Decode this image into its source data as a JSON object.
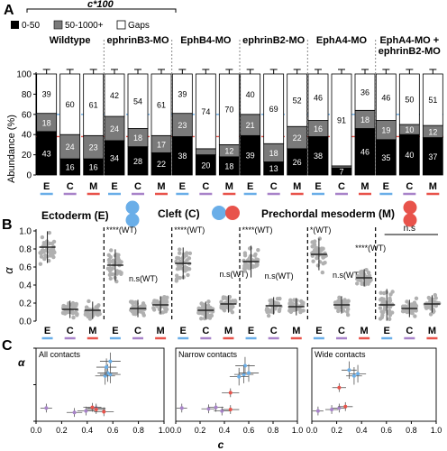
{
  "panels": {
    "a": "A",
    "b": "B",
    "c": "C"
  },
  "axes": {
    "abundance_ylabel": "Abundance (%)",
    "alpha": "α",
    "c": "c"
  },
  "legend": {
    "scale_title": "c*100",
    "bins": [
      "0-50",
      "50-1000+",
      "Gaps"
    ]
  },
  "tissue_legend": {
    "ectoderm": "Ectoderm (E)",
    "cleft": "Cleft (C)",
    "mesoderm": "Prechordal mesoderm (M)"
  },
  "colors": {
    "bin_low": "#000000",
    "bin_mid": "#7a7a7a",
    "gaps": "#ffffff",
    "E": "#6aaee8",
    "C": "#a883c9",
    "M": "#e8534b",
    "line_blue": "#6aaee8",
    "line_red": "#e8534b"
  },
  "chart_data": [
    {
      "type": "bar",
      "stacked": true,
      "title": "",
      "ylabel": "Abundance (%)",
      "ylim": [
        0,
        100
      ],
      "yticks": [
        0,
        20,
        40,
        60,
        80,
        100
      ],
      "legend": [
        "0-50",
        "50-1000+",
        "Gaps"
      ],
      "reference_lines": {
        "blue": 60,
        "red": 38
      },
      "groups": [
        {
          "name": "Wildtype",
          "bars": [
            {
              "cat": "E",
              "values": [
                43,
                18,
                39
              ],
              "labels": [
                "43",
                "18",
                "39"
              ]
            },
            {
              "cat": "C",
              "values": [
                16,
                24,
                60
              ],
              "labels": [
                "16",
                "24",
                "60"
              ]
            },
            {
              "cat": "M",
              "values": [
                16,
                23,
                61
              ],
              "labels": [
                "16",
                "23",
                "61"
              ]
            }
          ]
        },
        {
          "name": "ephrinB3-MO",
          "bars": [
            {
              "cat": "E",
              "values": [
                34,
                24,
                42
              ],
              "labels": [
                "34",
                "24",
                "42"
              ]
            },
            {
              "cat": "C",
              "values": [
                28,
                18,
                54
              ],
              "labels": [
                "28",
                "18",
                "54"
              ]
            },
            {
              "cat": "M",
              "values": [
                22,
                17,
                61
              ],
              "labels": [
                "22",
                "17",
                "61"
              ]
            }
          ]
        },
        {
          "name": "EphB4-MO",
          "bars": [
            {
              "cat": "E",
              "values": [
                38,
                23,
                39
              ],
              "labels": [
                "38",
                "23",
                "39"
              ]
            },
            {
              "cat": "C",
              "values": [
                20,
                6,
                74
              ],
              "labels": [
                "20",
                "",
                "74"
              ]
            },
            {
              "cat": "M",
              "values": [
                18,
                12,
                70
              ],
              "labels": [
                "18",
                "12",
                "70"
              ]
            }
          ]
        },
        {
          "name": "ephrinB2-MO",
          "bars": [
            {
              "cat": "E",
              "values": [
                39,
                21,
                40
              ],
              "labels": [
                "39",
                "21",
                "40"
              ]
            },
            {
              "cat": "C",
              "values": [
                13,
                18,
                69
              ],
              "labels": [
                "13",
                "18",
                "69"
              ]
            },
            {
              "cat": "M",
              "values": [
                26,
                22,
                52
              ],
              "labels": [
                "26",
                "22",
                "52"
              ]
            }
          ]
        },
        {
          "name": "EphA4-MO",
          "bars": [
            {
              "cat": "E",
              "values": [
                38,
                16,
                46
              ],
              "labels": [
                "38",
                "16",
                "46"
              ]
            },
            {
              "cat": "C",
              "values": [
                7,
                2,
                91
              ],
              "labels": [
                "7",
                "",
                "91"
              ]
            },
            {
              "cat": "M",
              "values": [
                46,
                18,
                36
              ],
              "labels": [
                "46",
                "18",
                "36"
              ]
            }
          ]
        },
        {
          "name": "EphA4-MO + ephrinB2-MO",
          "bars": [
            {
              "cat": "E",
              "values": [
                35,
                19,
                46
              ],
              "labels": [
                "35",
                "19",
                "46"
              ]
            },
            {
              "cat": "C",
              "values": [
                40,
                10,
                50
              ],
              "labels": [
                "40",
                "10",
                "50"
              ]
            },
            {
              "cat": "M",
              "values": [
                37,
                12,
                51
              ],
              "labels": [
                "37",
                "12",
                "51"
              ]
            }
          ]
        }
      ]
    },
    {
      "type": "scatter",
      "title": "",
      "ylabel": "α",
      "ylim": [
        0,
        1.0
      ],
      "yticks": [
        0.0,
        0.2,
        0.4,
        0.6,
        0.8,
        1.0
      ],
      "groups": [
        {
          "E": 0.82,
          "C": 0.13,
          "M": 0.12,
          "labels": {
            "E": "",
            "C": "",
            "M": ""
          }
        },
        {
          "E": 0.62,
          "C": 0.14,
          "M": 0.18,
          "labels": {
            "E": "****(WT)",
            "C": "n.s(WT)",
            "M": ""
          }
        },
        {
          "E": 0.64,
          "C": 0.12,
          "M": 0.19,
          "labels": {
            "E": "****(WT)",
            "C": "",
            "M": "n.s(WT)"
          }
        },
        {
          "E": 0.66,
          "C": 0.17,
          "M": 0.16,
          "labels": {
            "E": "****(WT)",
            "C": "n.s(WT)",
            "M": ""
          }
        },
        {
          "E": 0.74,
          "C": 0.18,
          "M": 0.48,
          "labels": {
            "E": "*(WT)",
            "C": "n.s(WT)",
            "M": "****(WT)"
          }
        },
        {
          "E": 0.18,
          "C": 0.14,
          "M": 0.19,
          "labels": {
            "E": "",
            "C": "",
            "M": ""
          }
        }
      ],
      "group_bracket": "n.s"
    },
    {
      "type": "scatter",
      "title": "All contacts",
      "xlabel": "c",
      "ylabel": "α",
      "xlim": [
        0,
        1.0
      ],
      "ylim": [
        0,
        1.0
      ],
      "points": [
        {
          "x": 0.58,
          "y": 0.82,
          "cat": "E"
        },
        {
          "x": 0.54,
          "y": 0.62,
          "cat": "E"
        },
        {
          "x": 0.58,
          "y": 0.64,
          "cat": "E"
        },
        {
          "x": 0.56,
          "y": 0.66,
          "cat": "E"
        },
        {
          "x": 0.55,
          "y": 0.74,
          "cat": "E"
        },
        {
          "x": 0.47,
          "y": 0.18,
          "cat": "C"
        },
        {
          "x": 0.39,
          "y": 0.14,
          "cat": "C"
        },
        {
          "x": 0.3,
          "y": 0.12,
          "cat": "C"
        },
        {
          "x": 0.53,
          "y": 0.13,
          "cat": "M"
        },
        {
          "x": 0.44,
          "y": 0.19,
          "cat": "M"
        },
        {
          "x": 0.47,
          "y": 0.16,
          "cat": "M"
        },
        {
          "x": 0.08,
          "y": 0.18,
          "cat": "C"
        }
      ]
    },
    {
      "type": "scatter",
      "title": "Narrow contacts",
      "xlabel": "c",
      "xlim": [
        0,
        1.0
      ],
      "ylim": [
        0,
        1.0
      ],
      "points": [
        {
          "x": 0.57,
          "y": 0.76,
          "cat": "E"
        },
        {
          "x": 0.56,
          "y": 0.64,
          "cat": "E"
        },
        {
          "x": 0.52,
          "y": 0.61,
          "cat": "E"
        },
        {
          "x": 0.6,
          "y": 0.66,
          "cat": "E"
        },
        {
          "x": 0.45,
          "y": 0.39,
          "cat": "M"
        },
        {
          "x": 0.38,
          "y": 0.14,
          "cat": "C"
        },
        {
          "x": 0.27,
          "y": 0.17,
          "cat": "C"
        },
        {
          "x": 0.33,
          "y": 0.19,
          "cat": "C"
        },
        {
          "x": 0.45,
          "y": 0.16,
          "cat": "M"
        },
        {
          "x": 0.05,
          "y": 0.18,
          "cat": "C"
        }
      ]
    },
    {
      "type": "scatter",
      "title": "Wide contacts",
      "xlabel": "c",
      "xlim": [
        0,
        1.0
      ],
      "ylim": [
        0,
        1.0
      ],
      "points": [
        {
          "x": 0.37,
          "y": 0.65,
          "cat": "E"
        },
        {
          "x": 0.34,
          "y": 0.62,
          "cat": "E"
        },
        {
          "x": 0.3,
          "y": 0.7,
          "cat": "E"
        },
        {
          "x": 0.22,
          "y": 0.46,
          "cat": "M"
        },
        {
          "x": 0.22,
          "y": 0.18,
          "cat": "C"
        },
        {
          "x": 0.16,
          "y": 0.16,
          "cat": "C"
        },
        {
          "x": 0.27,
          "y": 0.2,
          "cat": "M"
        },
        {
          "x": 0.05,
          "y": 0.14,
          "cat": "C"
        }
      ]
    }
  ]
}
